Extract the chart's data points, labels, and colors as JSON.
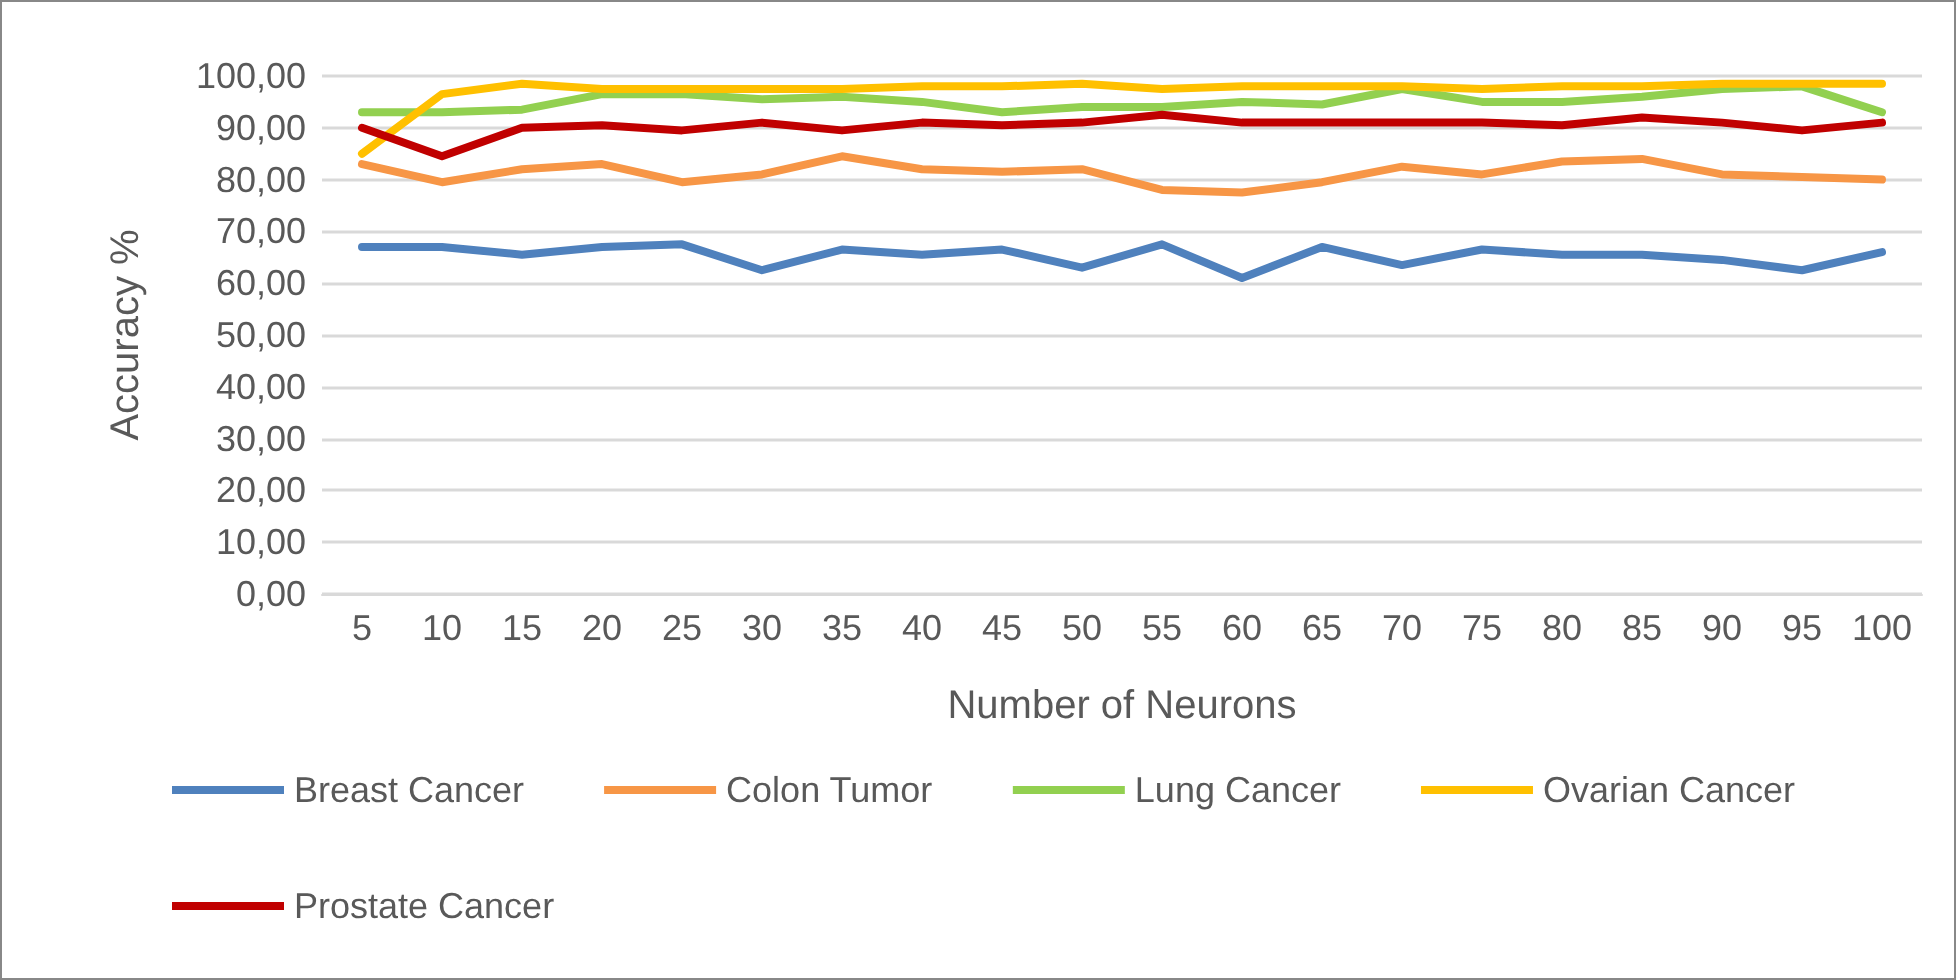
{
  "chart_data": {
    "type": "line",
    "xlabel": "Number of Neurons",
    "ylabel": "Accuracy %",
    "categories": [
      "5",
      "10",
      "15",
      "20",
      "25",
      "30",
      "35",
      "40",
      "45",
      "50",
      "55",
      "60",
      "65",
      "70",
      "75",
      "80",
      "85",
      "90",
      "95",
      "100"
    ],
    "series": [
      {
        "name": "Breast Cancer",
        "color": "#4f81bd",
        "values": [
          67,
          67,
          65.5,
          67,
          67.5,
          62.5,
          66.5,
          65.5,
          66.5,
          63,
          67.5,
          61,
          67,
          63.5,
          66.5,
          65.5,
          65.5,
          64.5,
          62.5,
          66
        ]
      },
      {
        "name": "Colon Tumor",
        "color": "#f79646",
        "values": [
          83,
          79.5,
          82,
          83,
          79.5,
          81,
          84.5,
          82,
          81.5,
          82,
          78,
          77.5,
          79.5,
          82.5,
          81,
          83.5,
          84,
          81,
          80.5,
          80
        ]
      },
      {
        "name": "Lung Cancer",
        "color": "#92d050",
        "values": [
          93,
          93,
          93.5,
          96.5,
          96.5,
          95.5,
          96,
          95,
          93,
          94,
          94,
          95,
          94.5,
          97.5,
          95,
          95,
          96,
          97.5,
          98,
          93
        ]
      },
      {
        "name": "Ovarian Cancer",
        "color": "#ffc000",
        "values": [
          85,
          96.5,
          98.5,
          97.5,
          97.5,
          97.5,
          97.5,
          98,
          98,
          98.5,
          97.5,
          98,
          98,
          98,
          97.5,
          98,
          98,
          98.5,
          98.5,
          98.5
        ]
      },
      {
        "name": "Prostate Cancer",
        "color": "#c00000",
        "values": [
          90,
          84.5,
          90,
          90.5,
          89.5,
          91,
          89.5,
          91,
          90.5,
          91,
          92.5,
          91,
          91,
          91,
          91,
          90.5,
          92,
          91,
          89.5,
          91
        ]
      }
    ],
    "ylim": [
      0,
      100
    ],
    "yticks": [
      {
        "value": 0,
        "label": "0,00"
      },
      {
        "value": 10,
        "label": "10,00"
      },
      {
        "value": 20,
        "label": "20,00"
      },
      {
        "value": 30,
        "label": "30,00"
      },
      {
        "value": 40,
        "label": "40,00"
      },
      {
        "value": 50,
        "label": "50,00"
      },
      {
        "value": 60,
        "label": "60,00"
      },
      {
        "value": 70,
        "label": "70,00"
      },
      {
        "value": 80,
        "label": "80,00"
      },
      {
        "value": 90,
        "label": "90,00"
      },
      {
        "value": 100,
        "label": "100,00"
      }
    ],
    "grid": "y",
    "legend": "bottom",
    "marker": "none",
    "line_style": "solid"
  }
}
